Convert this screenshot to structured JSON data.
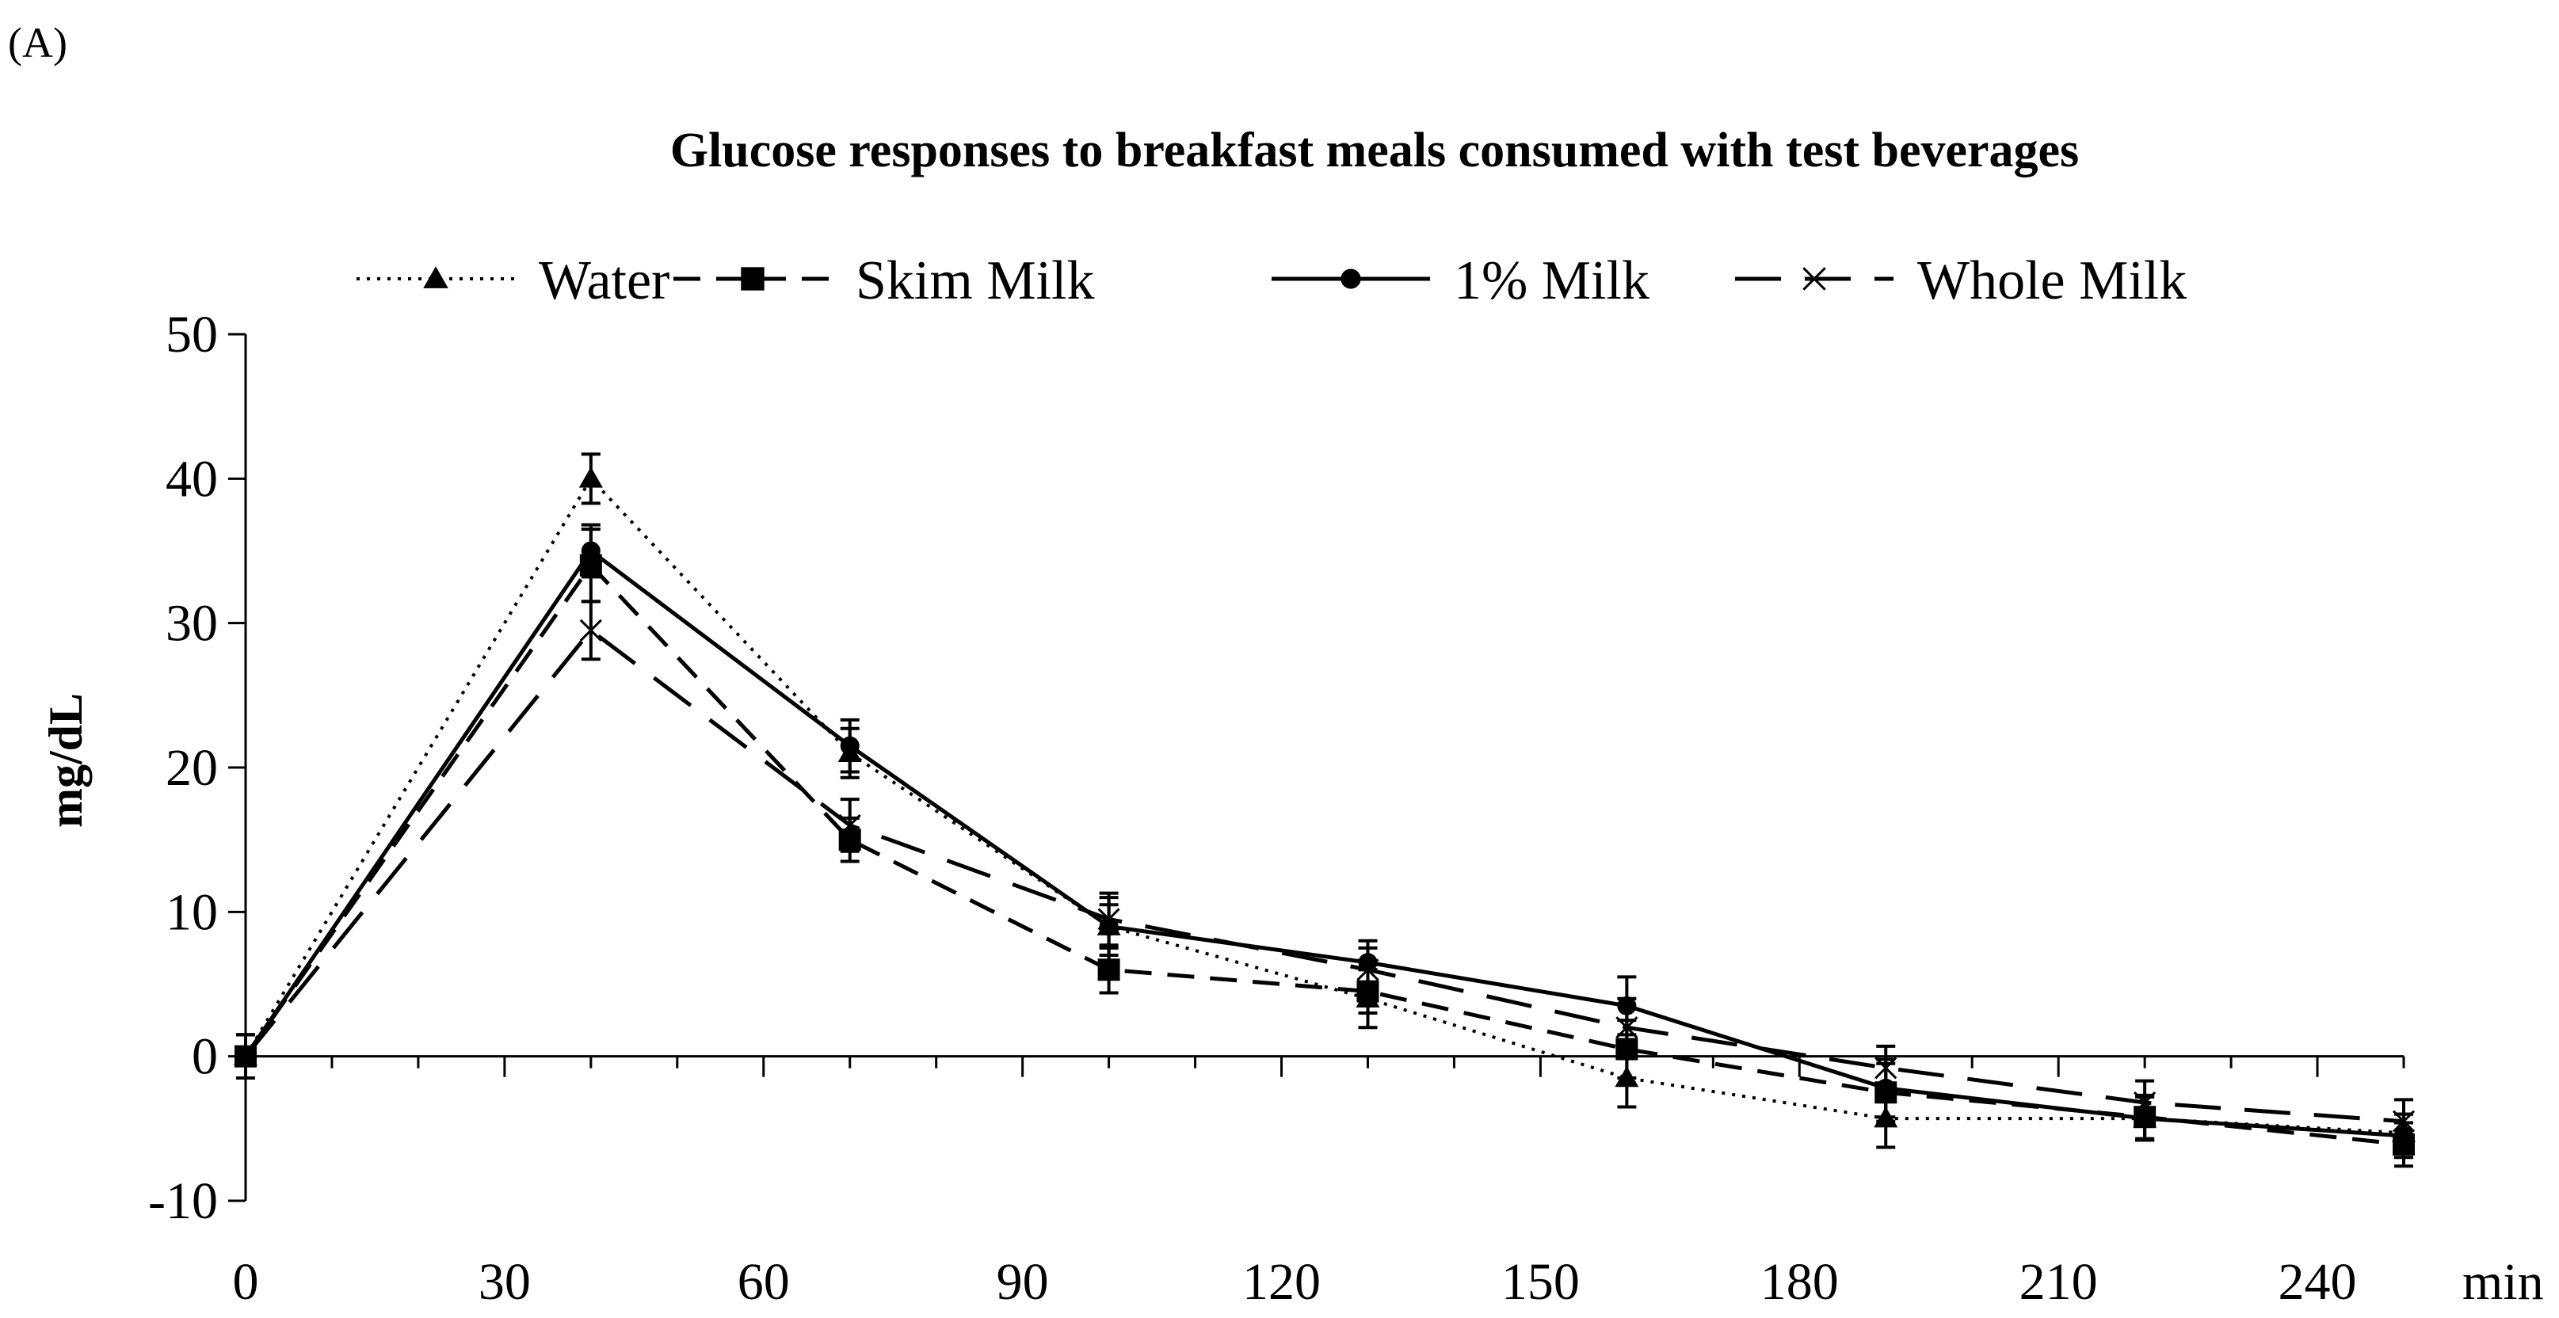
{
  "panel_label": "(A)",
  "chart_data": {
    "type": "line",
    "title": "Glucose responses to breakfast meals consumed with test beverages",
    "xlabel": "min",
    "ylabel": "mg/dL",
    "xlim": [
      0,
      250
    ],
    "ylim": [
      -10,
      50
    ],
    "x_ticks": [
      0,
      30,
      60,
      90,
      120,
      150,
      180,
      210,
      240
    ],
    "x_tick_labels": [
      "0",
      "30",
      "60",
      "90",
      "120",
      "150",
      "180",
      "210",
      "240"
    ],
    "y_ticks": [
      -10,
      0,
      10,
      20,
      30,
      40,
      50
    ],
    "y_tick_labels": [
      "-10",
      "0",
      "10",
      "20",
      "30",
      "40",
      "50"
    ],
    "x_minor_step": 10,
    "grid": false,
    "legend_position": "top",
    "x": [
      0,
      40,
      70,
      100,
      130,
      160,
      190,
      220,
      250
    ],
    "series": [
      {
        "name": "Water",
        "line": "dotted",
        "marker": "triangle",
        "values": [
          0,
          40,
          21,
          9,
          4,
          -1.5,
          -4.3,
          -4.3,
          -5.3
        ],
        "errors": [
          1.5,
          1.7,
          1.7,
          1.5,
          2.0,
          2.0,
          2.0,
          1.5,
          1.3
        ]
      },
      {
        "name": "Skim Milk",
        "line": "dashed",
        "marker": "square",
        "values": [
          0,
          34,
          15,
          6,
          4.5,
          0.5,
          -2.5,
          -4.2,
          -6.1
        ],
        "errors": [
          1.5,
          2.5,
          1.5,
          1.6,
          1.5,
          2.0,
          2.0,
          1.5,
          1.5
        ]
      },
      {
        "name": "1% Milk",
        "line": "solid",
        "marker": "circle",
        "values": [
          0,
          35,
          21.5,
          9,
          6.5,
          3.5,
          -2.2,
          -4.3,
          -5.5
        ],
        "errors": [
          1.5,
          1.8,
          1.8,
          2.0,
          1.5,
          2.0,
          2.0,
          1.5,
          1.5
        ]
      },
      {
        "name": "Whole Milk",
        "line": "longdash",
        "marker": "x",
        "values": [
          0,
          29.5,
          16,
          9.5,
          6,
          2,
          -0.8,
          -3.2,
          -4.5
        ],
        "errors": [
          1.5,
          2.0,
          1.8,
          1.8,
          1.5,
          2.0,
          1.5,
          1.5,
          1.5
        ]
      }
    ]
  }
}
